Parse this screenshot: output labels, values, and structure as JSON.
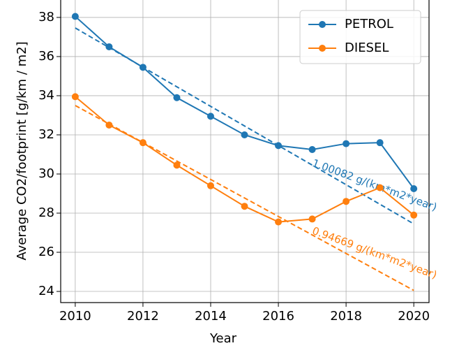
{
  "chart_data": {
    "type": "line",
    "x": [
      2010,
      2011,
      2012,
      2013,
      2014,
      2015,
      2016,
      2017,
      2018,
      2019,
      2020
    ],
    "series": [
      {
        "name": "PETROL",
        "color": "#1f77b4",
        "values": [
          38.05,
          36.5,
          35.45,
          33.9,
          32.95,
          32.0,
          31.45,
          31.25,
          31.55,
          31.6,
          29.25
        ]
      },
      {
        "name": "DIESEL",
        "color": "#ff7f0e",
        "values": [
          33.95,
          32.5,
          31.6,
          30.45,
          29.4,
          28.35,
          27.55,
          27.7,
          28.6,
          29.3,
          27.9
        ]
      }
    ],
    "trends": [
      {
        "x": [
          2010,
          2020
        ],
        "values": [
          37.46,
          27.45
        ],
        "color": "#1f77b4",
        "label": "1.00082 g/(km*m2*year)"
      },
      {
        "x": [
          2010,
          2020
        ],
        "values": [
          33.5,
          24.05
        ],
        "color": "#ff7f0e",
        "label": "0.94669 g/(km*m2*year)"
      }
    ],
    "xlabel": "Year",
    "ylabel": "Average CO2/footprint [g/km / m2]",
    "xlim": [
      2009.57,
      2020.45
    ],
    "ylim": [
      23.43,
      38.89
    ],
    "xticks": [
      2010,
      2012,
      2014,
      2016,
      2018,
      2020
    ],
    "yticks": [
      24,
      26,
      28,
      30,
      32,
      34,
      36,
      38
    ],
    "grid": true,
    "legend": "upper right"
  }
}
